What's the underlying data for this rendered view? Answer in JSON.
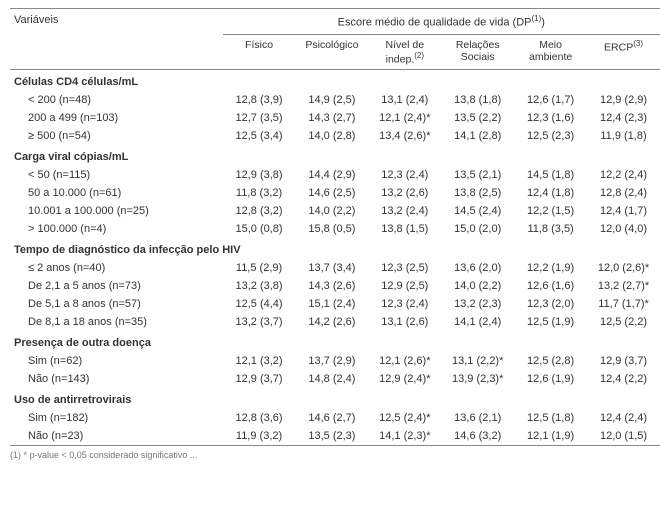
{
  "header": {
    "var": "Variáveis",
    "spanning": "Escore médio de qualidade de vida (DP",
    "spanning_sup": "(1)",
    "spanning_close": ")",
    "cols": [
      "Físico",
      "Psicológico",
      "Nível de indep.",
      "Relações Sociais",
      "Meio ambiente",
      "ERCP"
    ],
    "col3_sup": "(2)",
    "col6_sup": "(3)"
  },
  "sections": [
    {
      "title": "Células CD4 células/mL",
      "rows": [
        {
          "label": "< 200 (n=48)",
          "v": [
            "12,8 (3,9)",
            "14,9 (2,5)",
            "13,1 (2,4)",
            "13,8 (1,8)",
            "12,6 (1,7)",
            "12,9 (2,9)"
          ]
        },
        {
          "label": "200 a 499 (n=103)",
          "v": [
            "12,7 (3,5)",
            "14,3 (2,7)",
            "12,1 (2,4)*",
            "13,5 (2,2)",
            "12,3 (1,6)",
            "12,4 (2,3)"
          ]
        },
        {
          "label": "≥ 500 (n=54)",
          "v": [
            "12,5 (3,4)",
            "14,0 (2,8)",
            "13,4 (2,6)*",
            "14,1 (2,8)",
            "12,5 (2,3)",
            "11,9 (1,8)"
          ]
        }
      ]
    },
    {
      "title": "Carga viral cópias/mL",
      "rows": [
        {
          "label": "< 50 (n=115)",
          "v": [
            "12,9 (3,8)",
            "14,4 (2,9)",
            "12,3 (2,4)",
            "13,5 (2,1)",
            "14,5 (1,8)",
            "12,2 (2,4)"
          ]
        },
        {
          "label": "50 a 10.000 (n=61)",
          "v": [
            "11,8 (3,2)",
            "14,6 (2,5)",
            "13,2 (2,6)",
            "13,8 (2,5)",
            "12,4 (1,8)",
            "12,8 (2,4)"
          ]
        },
        {
          "label": "10.001 a 100.000 (n=25)",
          "v": [
            "12,8 (3,2)",
            "14,0 (2,2)",
            "13,2 (2,4)",
            "14,5 (2,4)",
            "12,2 (1,5)",
            "12,4 (1,7)"
          ]
        },
        {
          "label": "> 100.000 (n=4)",
          "v": [
            "15,0 (0,8)",
            "15,8 (0,5)",
            "13,8 (1,5)",
            "15,0 (2,0)",
            "11,8 (3,5)",
            "12,0 (4,0)"
          ]
        }
      ]
    },
    {
      "title": "Tempo de diagnóstico da infecção pelo HIV",
      "rows": [
        {
          "label": "≤ 2 anos (n=40)",
          "v": [
            "11,5 (2,9)",
            "13,7 (3,4)",
            "12,3 (2,5)",
            "13,6 (2,0)",
            "12,2 (1,9)",
            "12,0 (2,6)*"
          ]
        },
        {
          "label": "De 2,1 a 5 anos (n=73)",
          "v": [
            "13,2 (3,8)",
            "14,3 (2,6)",
            "12,9 (2,5)",
            "14,0 (2,2)",
            "12,6 (1,6)",
            "13,2 (2,7)*"
          ]
        },
        {
          "label": "De 5,1 a 8 anos (n=57)",
          "v": [
            "12,5 (4,4)",
            "15,1 (2,4)",
            "12,3 (2,4)",
            "13,2 (2,3)",
            "12,3 (2,0)",
            "11,7 (1,7)*"
          ]
        },
        {
          "label": "De 8,1 a 18 anos (n=35)",
          "v": [
            "13,2 (3,7)",
            "14,2 (2,6)",
            "13,1 (2,6)",
            "14,1 (2,4)",
            "12,5 (1,9)",
            "12,5 (2,2)"
          ]
        }
      ]
    },
    {
      "title": "Presença de outra doença",
      "rows": [
        {
          "label": "Sim (n=62)",
          "v": [
            "12,1 (3,2)",
            "13,7 (2,9)",
            "12,1 (2,6)*",
            "13,1 (2,2)*",
            "12,5 (2,8)",
            "12,9 (3,7)"
          ]
        },
        {
          "label": "Não (n=143)",
          "v": [
            "12,9 (3,7)",
            "14,8 (2,4)",
            "12,9 (2,4)*",
            "13,9 (2,3)*",
            "12,6 (1,9)",
            "12,4 (2,2)"
          ]
        }
      ]
    },
    {
      "title": "Uso de antirretrovirais",
      "rows": [
        {
          "label": "Sim (n=182)",
          "v": [
            "12,8 (3,6)",
            "14,6 (2,7)",
            "12,5 (2,4)*",
            "13,6 (2,1)",
            "12,5 (1,8)",
            "12,4 (2,4)"
          ]
        },
        {
          "label": "Não (n=23)",
          "v": [
            "11,9 (3,2)",
            "13,5 (2,3)",
            "14,1 (2,3)*",
            "14,6 (3,2)",
            "12,1 (1,9)",
            "12,0 (1,5)"
          ]
        }
      ]
    }
  ],
  "footnote": "(1)  * p-value < 0,05 considerado significativo ..."
}
